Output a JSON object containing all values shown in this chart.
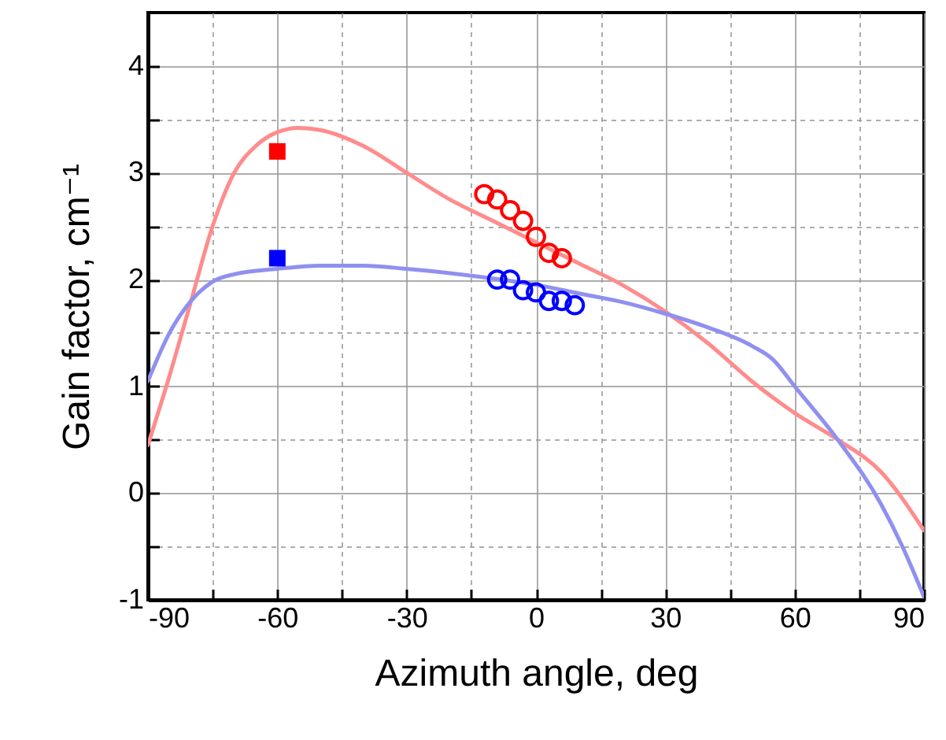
{
  "chart_data": {
    "type": "line",
    "xlabel": "Azimuth angle, deg",
    "ylabel": "Gain factor, cm⁻¹",
    "xlim": [
      -90,
      90
    ],
    "ylim": [
      -1,
      4.5
    ],
    "xticks": [
      -90,
      {
        "value": -75,
        "label": null
      },
      -60,
      {
        "value": -45,
        "label": null
      },
      -30,
      {
        "value": -15,
        "label": null
      },
      0,
      {
        "value": 15,
        "label": null
      },
      30,
      {
        "value": 45,
        "label": null
      },
      60,
      {
        "value": 75,
        "label": null
      },
      90
    ],
    "yticks": [
      -1,
      {
        "value": -0.5,
        "label": null
      },
      0,
      {
        "value": 0.5,
        "label": null
      },
      1,
      {
        "value": 1.5,
        "label": null
      },
      2,
      {
        "value": 2.5,
        "label": null
      },
      3,
      {
        "value": 3.5,
        "label": null
      },
      4
    ],
    "grid": true,
    "series": [
      {
        "type": "line",
        "color": "#ff8c8c",
        "x": [
          -90,
          -85,
          -80,
          -75,
          -70,
          -65,
          -60,
          -55,
          -50,
          -40,
          -30,
          -20,
          -10,
          0,
          10,
          20,
          30,
          40,
          50,
          60,
          70,
          80,
          90
        ],
        "values": [
          0.45,
          1.1,
          1.8,
          2.5,
          3.0,
          3.25,
          3.38,
          3.42,
          3.4,
          3.25,
          3.0,
          2.75,
          2.55,
          2.35,
          2.15,
          1.95,
          1.7,
          1.4,
          1.05,
          0.75,
          0.5,
          0.2,
          -0.35
        ]
      },
      {
        "type": "line",
        "color": "#9090f0",
        "x": [
          -90,
          -85,
          -80,
          -75,
          -70,
          -60,
          -50,
          -40,
          -30,
          -20,
          -10,
          0,
          10,
          20,
          30,
          40,
          50,
          55,
          60,
          70,
          80,
          85,
          90
        ],
        "values": [
          1.05,
          1.5,
          1.8,
          1.98,
          2.05,
          2.1,
          2.13,
          2.13,
          2.1,
          2.06,
          2.01,
          1.95,
          1.87,
          1.79,
          1.68,
          1.55,
          1.38,
          1.25,
          1.0,
          0.5,
          -0.1,
          -0.5,
          -0.97
        ]
      },
      {
        "type": "scatter",
        "marker": "square",
        "color": "#ff0000",
        "x": [
          -60
        ],
        "values": [
          3.2
        ]
      },
      {
        "type": "scatter",
        "marker": "square",
        "color": "#0000ff",
        "x": [
          -60
        ],
        "values": [
          2.2
        ]
      },
      {
        "type": "scatter",
        "marker": "circle",
        "color": "#ff0000",
        "x": [
          -12,
          -9,
          -6,
          -3,
          0,
          3,
          6
        ],
        "values": [
          2.8,
          2.75,
          2.65,
          2.55,
          2.4,
          2.25,
          2.2
        ]
      },
      {
        "type": "scatter",
        "marker": "circle",
        "color": "#0000ff",
        "x": [
          -9,
          -6,
          -3,
          0,
          3,
          6,
          9
        ],
        "values": [
          2.0,
          2.0,
          1.9,
          1.88,
          1.8,
          1.8,
          1.76
        ]
      }
    ]
  }
}
